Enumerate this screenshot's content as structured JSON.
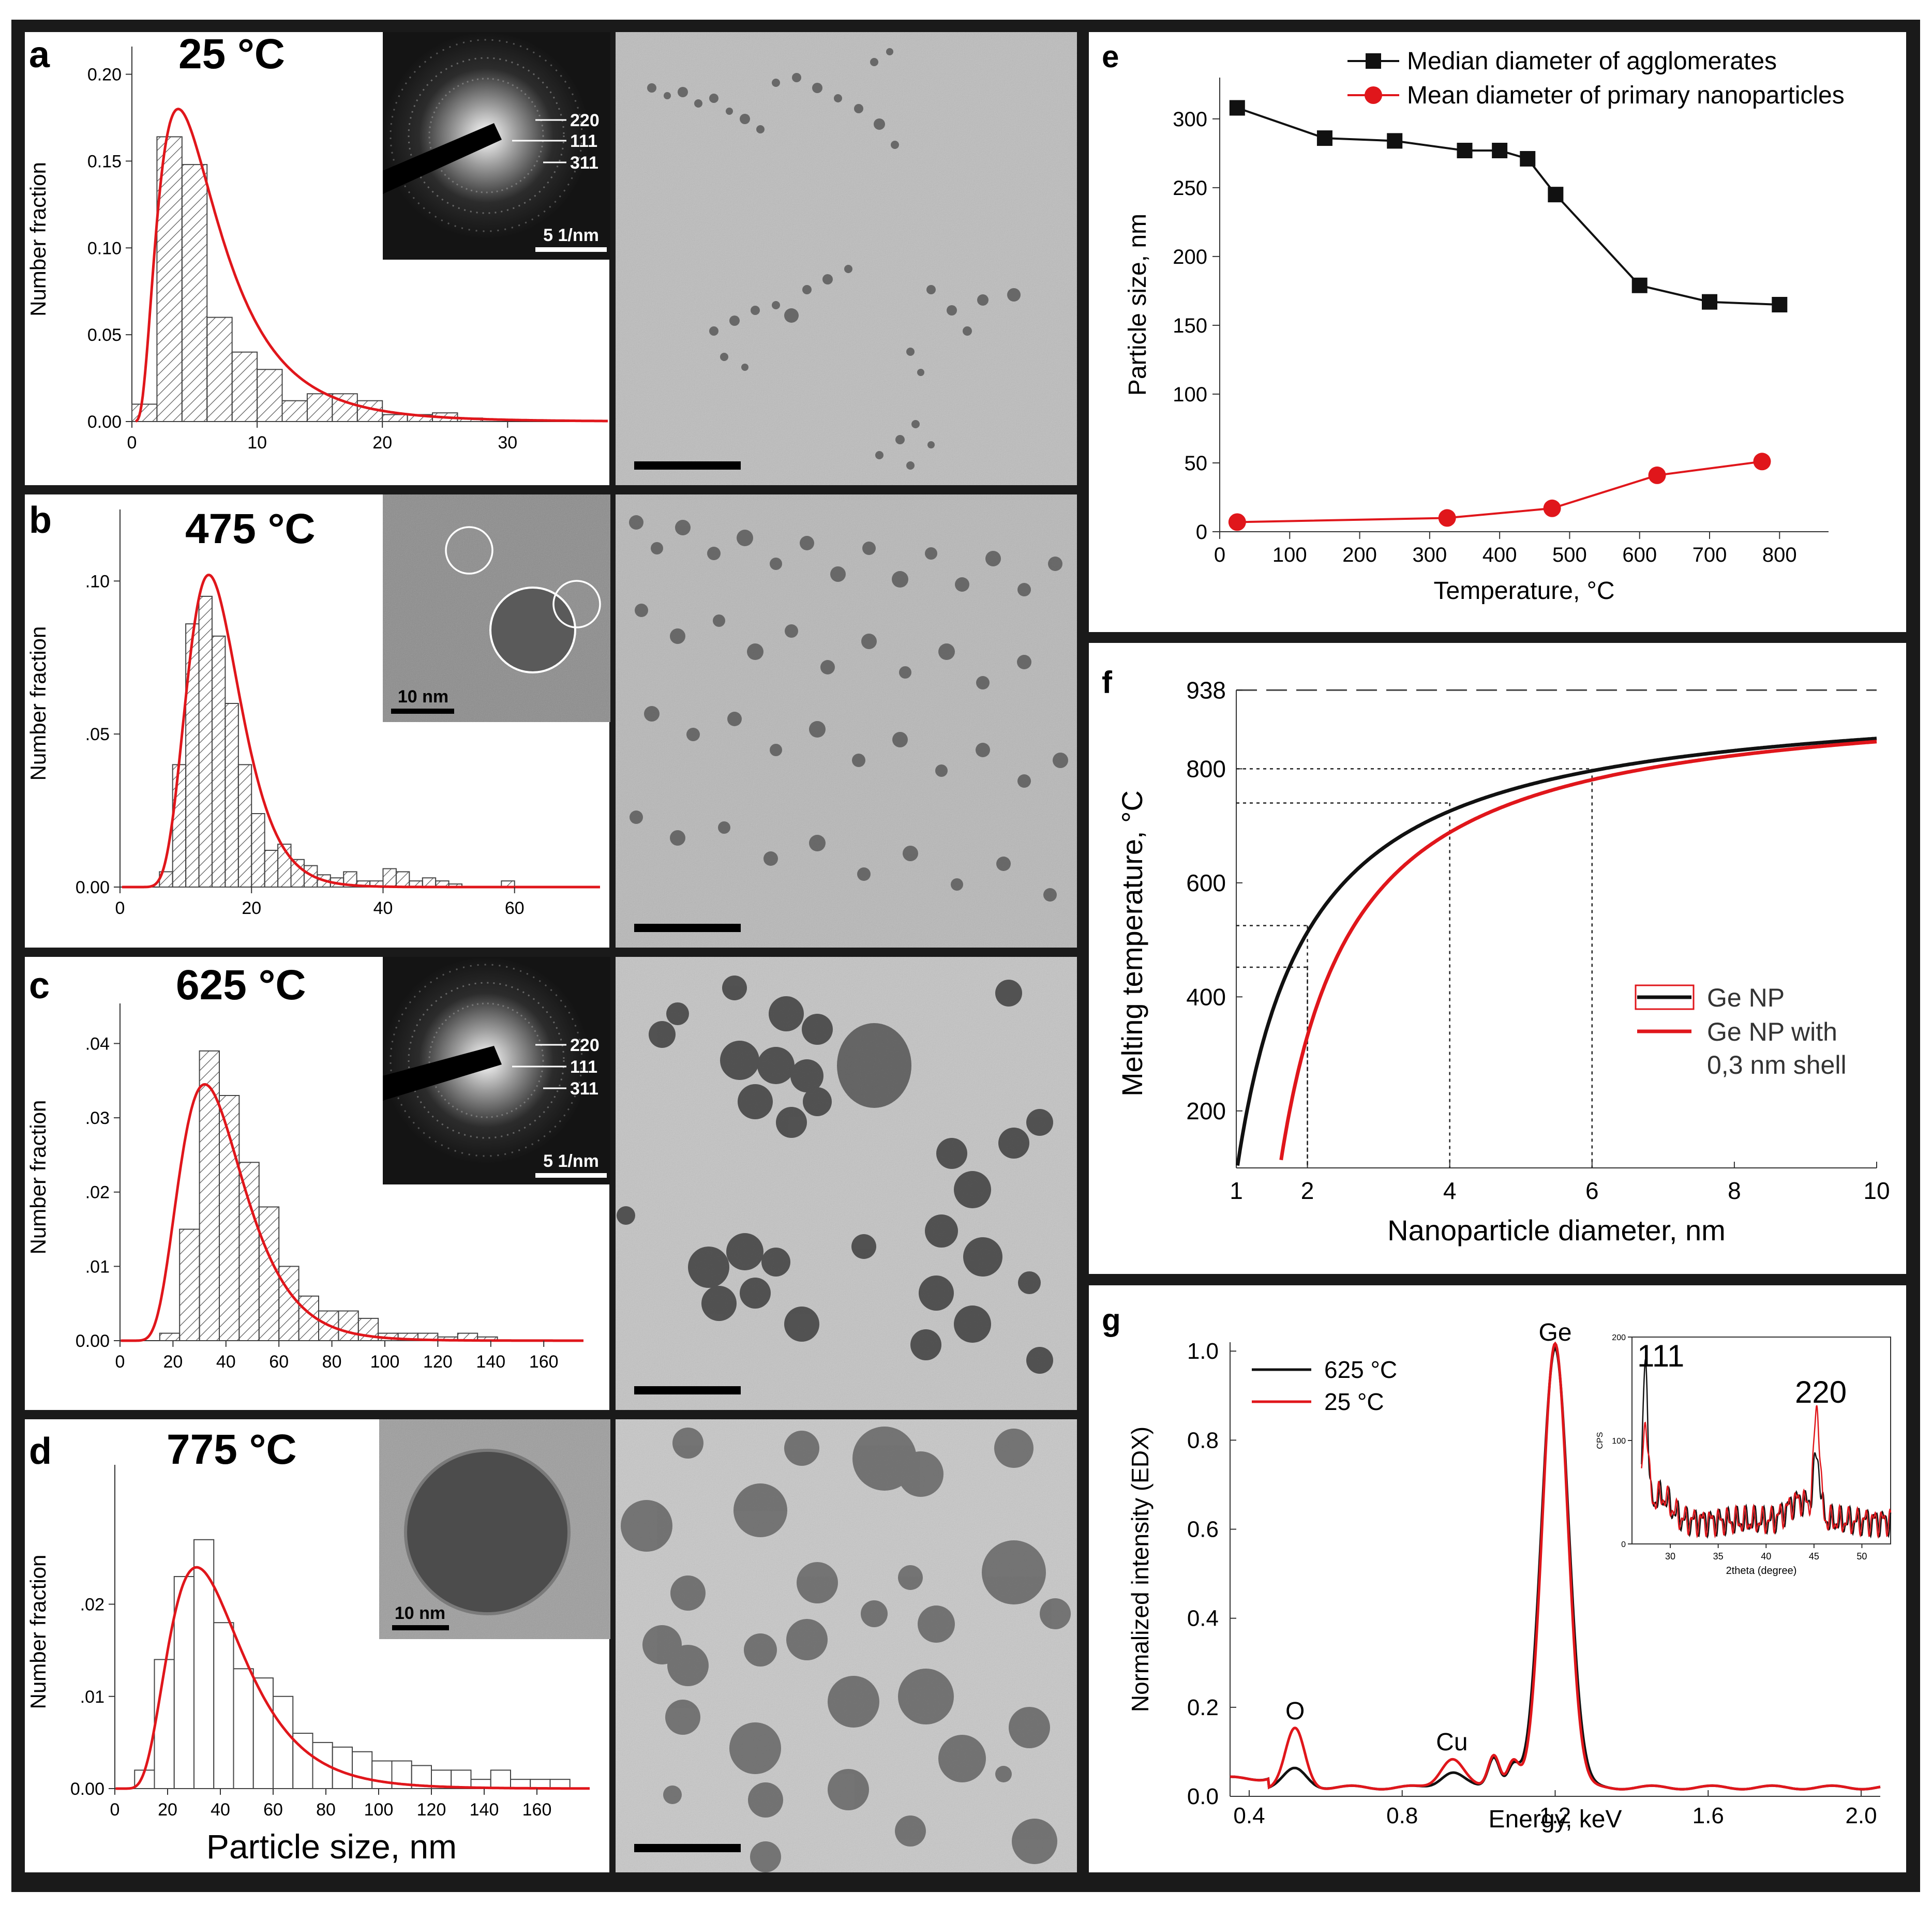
{
  "colors": {
    "frame": "#1a1a1a",
    "red": "#e0161b",
    "black": "#111111",
    "micrograph": "#b8b8b8",
    "diffraction": "#141414"
  },
  "panels": {
    "a": {
      "letter": "a",
      "temp": "25 °C",
      "ring_labels": [
        "220",
        "111",
        "311"
      ],
      "scale": "5 1/nm"
    },
    "b": {
      "letter": "b",
      "temp": "475 °C",
      "scale": "10 nm"
    },
    "c": {
      "letter": "c",
      "temp": "625 °C",
      "ring_labels": [
        "220",
        "111",
        "311"
      ],
      "scale": "5 1/nm"
    },
    "d": {
      "letter": "d",
      "temp": "775 °C",
      "scale": "10 nm"
    },
    "e": {
      "letter": "e"
    },
    "f": {
      "letter": "f"
    },
    "g": {
      "letter": "g"
    }
  },
  "chart_data": [
    {
      "id": "a",
      "type": "bar",
      "ylabel": "Number fraction",
      "xlabel": "",
      "xlim": [
        0,
        38
      ],
      "ylim": [
        0,
        0.21
      ],
      "xticks": [
        0,
        10,
        20,
        30
      ],
      "yticks": [
        "0.00",
        "0.05",
        "0.10",
        "0.15",
        "0.20"
      ],
      "bin_width": 2,
      "bin_starts": [
        0,
        2,
        4,
        6,
        8,
        10,
        12,
        14,
        16,
        18,
        20,
        22,
        24,
        26
      ],
      "values": [
        0.01,
        0.164,
        0.148,
        0.06,
        0.04,
        0.03,
        0.012,
        0.016,
        0.016,
        0.012,
        0.004,
        0.004,
        0.005,
        0.002
      ],
      "fit": {
        "type": "lognormal",
        "mode": 3.7,
        "sigma": 0.65,
        "peak": 0.18
      }
    },
    {
      "id": "b",
      "type": "bar",
      "ylabel": "Number fraction",
      "xlabel": "",
      "xlim": [
        0,
        73
      ],
      "ylim": [
        0,
        0.12
      ],
      "xticks": [
        0,
        20,
        40,
        60
      ],
      "yticks": [
        "0.00",
        ".05",
        ".10"
      ],
      "bin_width": 2,
      "bin_starts": [
        6,
        8,
        10,
        12,
        14,
        16,
        18,
        20,
        22,
        24,
        26,
        28,
        30,
        32,
        34,
        36,
        38,
        40,
        42,
        44,
        46,
        48,
        50,
        58
      ],
      "values": [
        0.005,
        0.04,
        0.086,
        0.095,
        0.082,
        0.06,
        0.04,
        0.024,
        0.012,
        0.014,
        0.009,
        0.007,
        0.004,
        0.003,
        0.005,
        0.002,
        0.002,
        0.006,
        0.005,
        0.002,
        0.003,
        0.002,
        0.001,
        0.002
      ],
      "fit": {
        "type": "lognormal",
        "mode": 13.5,
        "sigma": 0.3,
        "peak": 0.102
      }
    },
    {
      "id": "c",
      "type": "bar",
      "ylabel": "Number fraction",
      "xlabel": "",
      "xlim": [
        0,
        175
      ],
      "ylim": [
        0,
        0.044
      ],
      "xticks": [
        0,
        20,
        40,
        60,
        80,
        100,
        120,
        140,
        160
      ],
      "yticks": [
        "0.00",
        ".01",
        ".02",
        ".03",
        ".04"
      ],
      "bin_width": 7.5,
      "bin_starts": [
        15,
        22.5,
        30,
        37.5,
        45,
        52.5,
        60,
        67.5,
        75,
        82.5,
        90,
        97.5,
        105,
        112.5,
        120,
        127.5,
        135
      ],
      "values": [
        0.001,
        0.015,
        0.039,
        0.033,
        0.024,
        0.018,
        0.01,
        0.006,
        0.004,
        0.004,
        0.003,
        0.001,
        0.001,
        0.001,
        0.0005,
        0.001,
        0.0005
      ],
      "fit": {
        "type": "lognormal",
        "mode": 32,
        "sigma": 0.38,
        "peak": 0.0345
      }
    },
    {
      "id": "d",
      "type": "bar",
      "ylabel": "Number fraction",
      "xlabel": "Particle size, nm",
      "xlim": [
        0,
        180
      ],
      "ylim": [
        0,
        0.034
      ],
      "xticks": [
        0,
        20,
        40,
        60,
        80,
        100,
        120,
        140,
        160
      ],
      "yticks": [
        "0.00",
        ".01",
        ".02"
      ],
      "bin_width": 7.5,
      "bin_starts": [
        7.5,
        15,
        22.5,
        30,
        37.5,
        45,
        52.5,
        60,
        67.5,
        75,
        82.5,
        90,
        97.5,
        105,
        112.5,
        120,
        127.5,
        135,
        142.5,
        150,
        157.5,
        165
      ],
      "values": [
        0.002,
        0.014,
        0.023,
        0.027,
        0.018,
        0.013,
        0.012,
        0.01,
        0.006,
        0.005,
        0.0045,
        0.004,
        0.003,
        0.003,
        0.0025,
        0.002,
        0.002,
        0.001,
        0.002,
        0.001,
        0.001,
        0.001
      ],
      "fit": {
        "type": "lognormal",
        "mode": 31,
        "sigma": 0.45,
        "peak": 0.024
      }
    },
    {
      "id": "e",
      "type": "line",
      "xlabel": "Temperature, °C",
      "ylabel": "Particle size, nm",
      "xlim": [
        0,
        870
      ],
      "ylim": [
        0,
        330
      ],
      "xticks": [
        0,
        100,
        200,
        300,
        400,
        500,
        600,
        700,
        800
      ],
      "yticks": [
        0,
        50,
        100,
        150,
        200,
        250,
        300
      ],
      "legend_position": "top",
      "series": [
        {
          "name": "Median diameter of agglomerates",
          "marker": "square",
          "color": "#111111",
          "x": [
            25,
            150,
            250,
            350,
            400,
            440,
            480,
            600,
            700,
            800
          ],
          "y": [
            308,
            286,
            284,
            277,
            277,
            271,
            245,
            179,
            167,
            165
          ]
        },
        {
          "name": "Mean diameter of primary nanoparticles",
          "marker": "circle",
          "color": "#e0161b",
          "x": [
            25,
            325,
            475,
            625,
            775
          ],
          "y": [
            7,
            10,
            17,
            41,
            51
          ]
        }
      ]
    },
    {
      "id": "f",
      "type": "line",
      "xlabel": "Nanoparticle diameter, nm",
      "ylabel": "Melting temperature, °C",
      "xlim": [
        1,
        10
      ],
      "ylim": [
        100,
        960
      ],
      "xticks": [
        1,
        2,
        4,
        6,
        8,
        10
      ],
      "yticks": [
        200,
        400,
        600,
        800,
        938
      ],
      "bulk_melting": 938,
      "legend_position": "right",
      "series": [
        {
          "name": "Ge NP",
          "color": "#111111",
          "model": {
            "bulk": 938,
            "alpha": 0.905,
            "shell": 0.0
          }
        },
        {
          "name": "Ge NP with",
          "name_line2": "0,3 nm shell",
          "color": "#e0161b",
          "model": {
            "bulk": 938,
            "alpha": 0.905,
            "shell": 0.3
          }
        }
      ],
      "guides": [
        {
          "x": 2,
          "y": 452
        },
        {
          "x": 2,
          "y": 525
        },
        {
          "x": 4,
          "y": 740
        },
        {
          "x": 6,
          "y": 800
        }
      ]
    },
    {
      "id": "g",
      "type": "line",
      "xlabel": "Energy, keV",
      "ylabel": "Normalized intensity (EDX)",
      "xlim": [
        0.35,
        2.05
      ],
      "ylim": [
        0,
        1.02
      ],
      "xticks": [
        0.4,
        0.8,
        1.2,
        1.6,
        2.0
      ],
      "yticks": [
        0.0,
        0.2,
        0.4,
        0.6,
        0.8,
        1.0
      ],
      "peak_labels": [
        {
          "text": "O",
          "x": 0.52,
          "y": 0.15
        },
        {
          "text": "Cu",
          "x": 0.93,
          "y": 0.08
        },
        {
          "text": "Ge",
          "x": 1.2,
          "y": 1.0
        }
      ],
      "legend_position": "top-left",
      "series": [
        {
          "name": "625 °C",
          "color": "#111111",
          "peaks": [
            {
              "c": 0.52,
              "h": 0.04,
              "w": 0.03
            },
            {
              "c": 0.93,
              "h": 0.035,
              "w": 0.03
            },
            {
              "c": 1.04,
              "h": 0.07,
              "w": 0.015
            },
            {
              "c": 1.09,
              "h": 0.05,
              "w": 0.015
            },
            {
              "c": 1.2,
              "h": 0.99,
              "w": 0.035
            }
          ],
          "baseline": 0.02
        },
        {
          "name": "25 °C",
          "color": "#e0161b",
          "peaks": [
            {
              "c": 0.52,
              "h": 0.13,
              "w": 0.025
            },
            {
              "c": 0.93,
              "h": 0.065,
              "w": 0.03
            },
            {
              "c": 1.04,
              "h": 0.075,
              "w": 0.015
            },
            {
              "c": 1.09,
              "h": 0.06,
              "w": 0.015
            },
            {
              "c": 1.2,
              "h": 1.0,
              "w": 0.033
            }
          ],
          "baseline": 0.02
        }
      ],
      "inset": {
        "type": "line",
        "xlabel": "2theta (degree)",
        "ylabel": "CPS",
        "xlim": [
          26,
          53
        ],
        "ylim": [
          0,
          200
        ],
        "xticks": [
          30,
          35,
          40,
          45,
          50
        ],
        "yticks": [
          0,
          100,
          200
        ],
        "peak_labels": [
          "111",
          "220"
        ],
        "series": [
          {
            "name": "625 °C",
            "color": "#111111",
            "peaks": [
              {
                "c": 27.4,
                "h": 150,
                "w": 0.25
              },
              {
                "c": 45.3,
                "h": 55,
                "w": 0.35
              }
            ]
          },
          {
            "name": "25 °C",
            "color": "#e0161b",
            "peaks": [
              {
                "c": 27.4,
                "h": 90,
                "w": 0.3
              },
              {
                "c": 45.3,
                "h": 105,
                "w": 0.3
              }
            ]
          }
        ]
      }
    }
  ]
}
